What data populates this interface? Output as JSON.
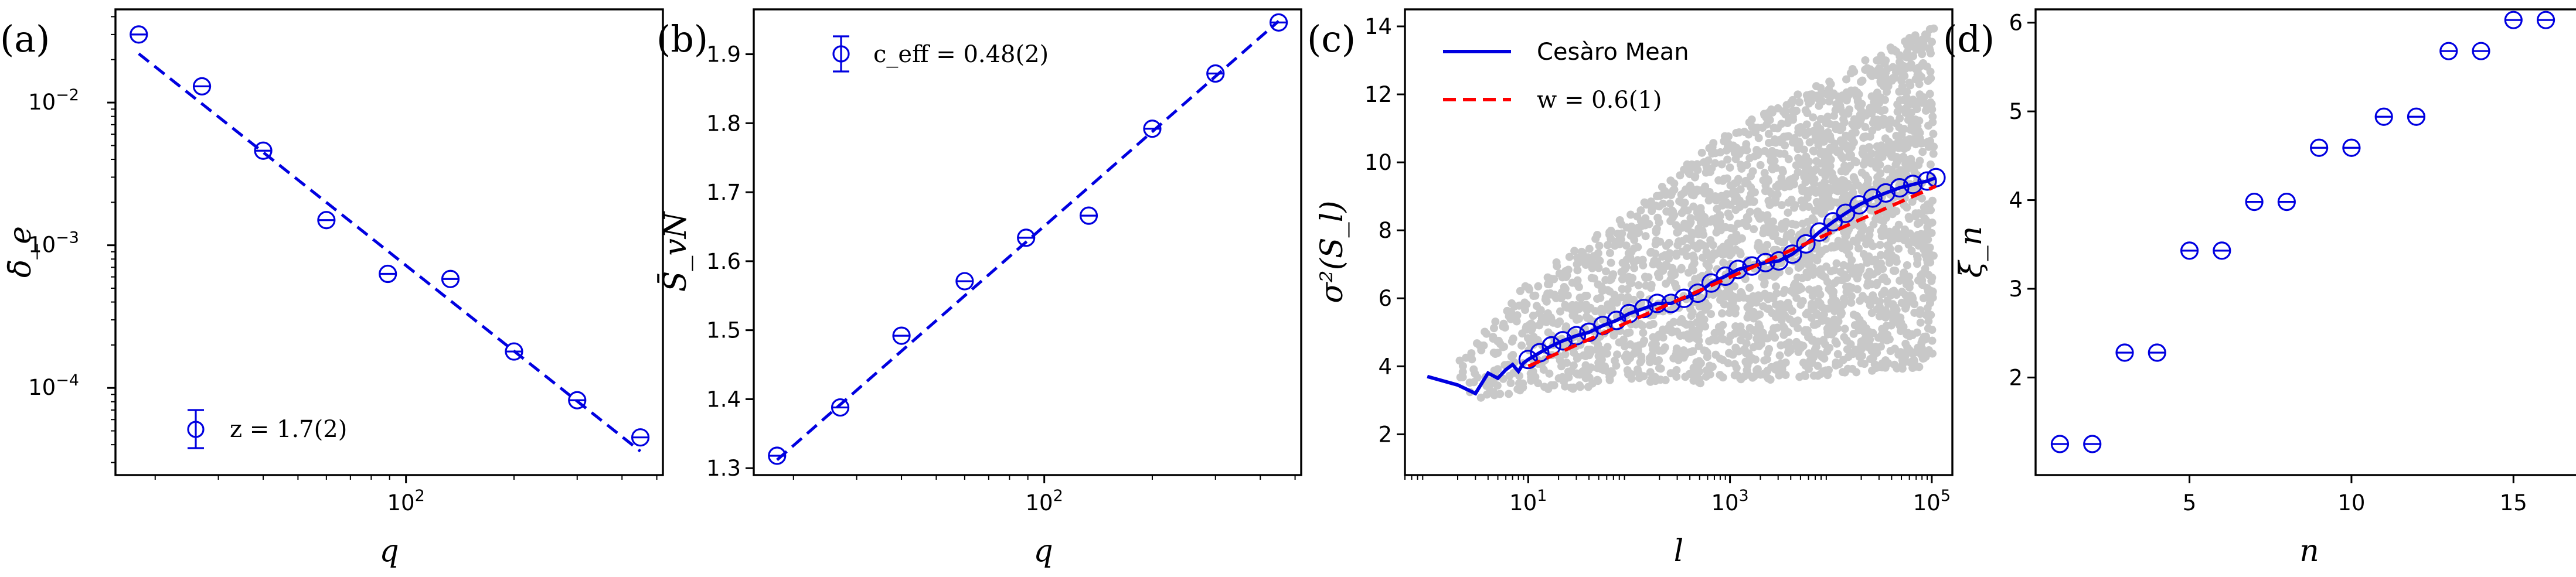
{
  "colors": {
    "marker": "#0000e0",
    "fit": "#0000e0",
    "red_fit": "#ff0000",
    "raw": "#c8c8c8"
  },
  "chart_data": [
    {
      "panel_label": "(a)",
      "type": "scatter",
      "xlabel": "q",
      "ylabel": "δ̄_e",
      "xscale": "log",
      "yscale": "log",
      "xlim": [
        15.5,
        520
      ],
      "ylim": [
        2.45e-05,
        0.045
      ],
      "xtick_labels": [
        {
          "v": 100,
          "base": "10",
          "exp": "2"
        }
      ],
      "ytick_labels": [
        {
          "v": 0.01,
          "base": "10",
          "exp": "−2"
        },
        {
          "v": 0.001,
          "base": "10",
          "exp": "−3"
        },
        {
          "v": 0.0001,
          "base": "10",
          "exp": "−4"
        }
      ],
      "x": [
        18,
        27,
        40,
        60,
        89,
        133,
        200,
        300,
        450
      ],
      "y": [
        0.03,
        0.013,
        0.0046,
        0.0015,
        0.00063,
        0.00058,
        0.00018,
        8.2e-05,
        4.5e-05
      ],
      "fit": {
        "x": [
          18,
          450
        ],
        "y": [
          0.022,
          3.6e-05
        ]
      },
      "legend": {
        "text": "z = 1.7(2)",
        "position": "lower-left"
      },
      "grid": false
    },
    {
      "panel_label": "(b)",
      "type": "scatter",
      "xlabel": "q",
      "ylabel": "S̄_vN",
      "xscale": "log",
      "yscale": "linear",
      "xlim": [
        15.5,
        520
      ],
      "ylim": [
        1.29,
        1.965
      ],
      "xtick_labels": [
        {
          "v": 100,
          "base": "10",
          "exp": "2"
        }
      ],
      "yticks": [
        1.3,
        1.4,
        1.5,
        1.6,
        1.7,
        1.8,
        1.9
      ],
      "x": [
        18,
        27,
        40,
        60,
        89,
        133,
        200,
        300,
        450
      ],
      "y": [
        1.318,
        1.388,
        1.492,
        1.571,
        1.634,
        1.666,
        1.792,
        1.872,
        1.946
      ],
      "fit": {
        "x": [
          18,
          450
        ],
        "y": [
          1.312,
          1.948
        ]
      },
      "legend": {
        "text": "c_eff = 0.48(2)",
        "position": "upper-left"
      },
      "grid": false
    },
    {
      "panel_label": "(c)",
      "type": "scatter",
      "xlabel": "l",
      "ylabel": "σ²(S_l)",
      "xscale": "log",
      "yscale": "linear",
      "xlim": [
        0.6,
        160000
      ],
      "ylim": [
        0.8,
        14.5
      ],
      "xtick_labels": [
        {
          "v": 10,
          "base": "10",
          "exp": "1"
        },
        {
          "v": 1000,
          "base": "10",
          "exp": "3"
        },
        {
          "v": 100000,
          "base": "10",
          "exp": "5"
        }
      ],
      "yticks": [
        2,
        4,
        6,
        8,
        10,
        12,
        14
      ],
      "series": [
        {
          "name": "Cesàro Mean",
          "style": "solid",
          "x": [
            1,
            2,
            3,
            4,
            5,
            6,
            7,
            8,
            9,
            10,
            13,
            17,
            22,
            30,
            40,
            55,
            75,
            100,
            140,
            190,
            260,
            350,
            480,
            650,
            900,
            1200,
            1650,
            2250,
            3050,
            4150,
            5650,
            7700,
            10500,
            14000,
            19000,
            26000,
            35000,
            48000,
            65000,
            90000,
            110000
          ],
          "y": [
            3.7,
            3.45,
            3.2,
            3.8,
            3.65,
            3.9,
            4.05,
            3.85,
            4.1,
            4.2,
            4.4,
            4.6,
            4.75,
            4.9,
            5.0,
            5.2,
            5.35,
            5.55,
            5.7,
            5.85,
            5.85,
            6.0,
            6.15,
            6.45,
            6.65,
            6.85,
            6.95,
            7.05,
            7.1,
            7.3,
            7.6,
            7.95,
            8.25,
            8.5,
            8.75,
            8.95,
            9.1,
            9.25,
            9.35,
            9.45,
            9.55
          ]
        },
        {
          "name": "w = 0.6(1)",
          "style": "dashed",
          "x": [
            10,
            110000
          ],
          "y": [
            4.0,
            9.3
          ]
        }
      ],
      "grey_scatter": {
        "description": "raw samples",
        "ymin_at": [
          [
            2,
            3.0
          ],
          [
            10,
            3.2
          ],
          [
            100,
            3.5
          ],
          [
            1000,
            3.5
          ],
          [
            100000,
            4.0
          ]
        ],
        "ymax_at": [
          [
            2,
            4.2
          ],
          [
            10,
            6.5
          ],
          [
            100,
            8.5
          ],
          [
            1000,
            11.0
          ],
          [
            100000,
            14.0
          ]
        ]
      },
      "legend": {
        "position": "upper-left"
      },
      "grid": false
    },
    {
      "panel_label": "(d)",
      "type": "scatter",
      "xlabel": "n",
      "ylabel": "ξ̄_n",
      "xscale": "linear",
      "yscale": "linear",
      "xlim": [
        0.25,
        16.75
      ],
      "ylim": [
        0.9,
        6.15
      ],
      "xticks": [
        5,
        10,
        15
      ],
      "yticks": [
        2,
        3,
        4,
        5,
        6
      ],
      "x": [
        1,
        2,
        3,
        4,
        5,
        6,
        7,
        8,
        9,
        10,
        11,
        12,
        13,
        14,
        15,
        16
      ],
      "y": [
        1.25,
        1.25,
        2.28,
        2.28,
        3.43,
        3.43,
        3.98,
        3.98,
        4.59,
        4.59,
        4.94,
        4.94,
        5.68,
        5.68,
        6.03,
        6.03
      ],
      "grid": false
    }
  ]
}
